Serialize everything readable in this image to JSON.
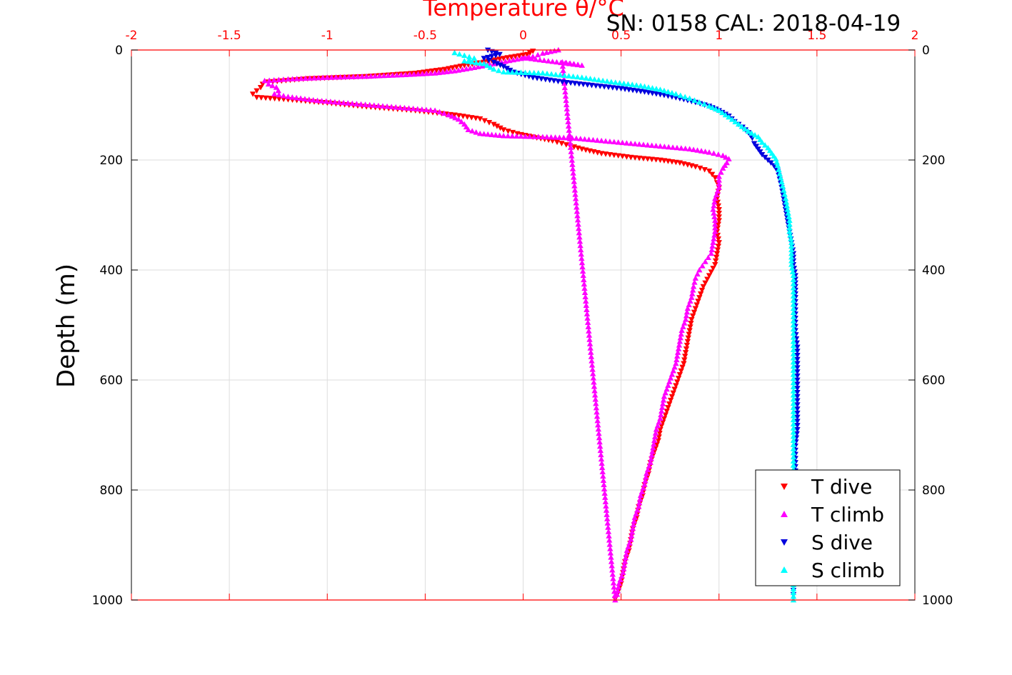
{
  "chart_data": {
    "type": "scatter",
    "title": "SN: 0158  CAL: 2018-04-19",
    "xlabel": "Temperature θ/°C",
    "ylabel": "Depth (m)",
    "xlim": [
      -2,
      2
    ],
    "ylim": [
      1000,
      0
    ],
    "y_reversed": true,
    "grid": true,
    "legend_position": "bottom-right",
    "x_ticks": [
      "-2",
      "-1.5",
      "-1",
      "-0.5",
      "0",
      "0.5",
      "1",
      "1.5",
      "2"
    ],
    "y_ticks": [
      "0",
      "200",
      "400",
      "600",
      "800",
      "1000"
    ],
    "x_tick_values": [
      -2,
      -1.5,
      -1,
      -0.5,
      0,
      0.5,
      1,
      1.5,
      2
    ],
    "y_tick_values": [
      0,
      200,
      400,
      600,
      800,
      1000
    ],
    "colors": {
      "axis_top": "#ff0000",
      "axis_box": "#000000",
      "grid": "#dddddd",
      "t_dive": "#ff0000",
      "t_climb": "#ff00ff",
      "s_dive": "#0000dd",
      "s_climb": "#00ffff"
    },
    "series": [
      {
        "name": "T dive",
        "marker": "triangle-down",
        "color": "#ff0000",
        "points": [
          [
            0.05,
            2
          ],
          [
            0.02,
            8
          ],
          [
            -0.1,
            15
          ],
          [
            -0.2,
            22
          ],
          [
            -0.3,
            28
          ],
          [
            -0.4,
            35
          ],
          [
            -0.55,
            42
          ],
          [
            -0.8,
            48
          ],
          [
            -1.1,
            52
          ],
          [
            -1.3,
            58
          ],
          [
            -1.33,
            62
          ],
          [
            -1.34,
            68
          ],
          [
            -1.36,
            74
          ],
          [
            -1.38,
            80
          ],
          [
            -1.36,
            86
          ],
          [
            -1.2,
            90
          ],
          [
            -1.0,
            96
          ],
          [
            -0.8,
            103
          ],
          [
            -0.55,
            110
          ],
          [
            -0.35,
            118
          ],
          [
            -0.22,
            125
          ],
          [
            -0.15,
            135
          ],
          [
            -0.1,
            145
          ],
          [
            -0.03,
            152
          ],
          [
            0.05,
            158
          ],
          [
            0.15,
            165
          ],
          [
            0.22,
            172
          ],
          [
            0.3,
            180
          ],
          [
            0.4,
            188
          ],
          [
            0.55,
            195
          ],
          [
            0.7,
            200
          ],
          [
            0.8,
            205
          ],
          [
            0.88,
            212
          ],
          [
            0.95,
            220
          ],
          [
            0.98,
            232
          ],
          [
            1.0,
            250
          ],
          [
            0.99,
            270
          ],
          [
            1.0,
            290
          ],
          [
            1.0,
            310
          ],
          [
            0.99,
            330
          ],
          [
            1.0,
            350
          ],
          [
            0.99,
            370
          ],
          [
            0.98,
            390
          ],
          [
            0.95,
            410
          ],
          [
            0.92,
            430
          ],
          [
            0.9,
            450
          ],
          [
            0.88,
            470
          ],
          [
            0.86,
            490
          ],
          [
            0.85,
            510
          ],
          [
            0.84,
            530
          ],
          [
            0.83,
            550
          ],
          [
            0.82,
            570
          ],
          [
            0.8,
            590
          ],
          [
            0.78,
            610
          ],
          [
            0.76,
            630
          ],
          [
            0.74,
            650
          ],
          [
            0.72,
            670
          ],
          [
            0.7,
            690
          ],
          [
            0.69,
            710
          ],
          [
            0.67,
            730
          ],
          [
            0.65,
            750
          ],
          [
            0.64,
            770
          ],
          [
            0.62,
            790
          ],
          [
            0.61,
            810
          ],
          [
            0.59,
            830
          ],
          [
            0.58,
            850
          ],
          [
            0.56,
            870
          ],
          [
            0.55,
            890
          ],
          [
            0.54,
            910
          ],
          [
            0.52,
            930
          ],
          [
            0.51,
            950
          ],
          [
            0.5,
            970
          ],
          [
            0.48,
            990
          ],
          [
            0.47,
            998
          ]
        ]
      },
      {
        "name": "T climb",
        "marker": "triangle-up",
        "color": "#ff00ff",
        "points": [
          [
            0.18,
            0
          ],
          [
            0.1,
            6
          ],
          [
            0.05,
            12
          ],
          [
            -0.05,
            18
          ],
          [
            -0.15,
            25
          ],
          [
            -0.25,
            32
          ],
          [
            -0.35,
            38
          ],
          [
            -0.45,
            42
          ],
          [
            -0.6,
            45
          ],
          [
            -0.8,
            48
          ],
          [
            -1.0,
            50
          ],
          [
            -1.2,
            53
          ],
          [
            -1.32,
            56
          ],
          [
            -1.3,
            62
          ],
          [
            -1.26,
            68
          ],
          [
            -1.25,
            74
          ],
          [
            -1.27,
            80
          ],
          [
            -1.2,
            85
          ],
          [
            -1.05,
            92
          ],
          [
            -0.85,
            98
          ],
          [
            -0.65,
            104
          ],
          [
            -0.45,
            110
          ],
          [
            -0.38,
            118
          ],
          [
            -0.33,
            126
          ],
          [
            -0.3,
            135
          ],
          [
            -0.28,
            145
          ],
          [
            -0.22,
            152
          ],
          [
            -0.1,
            156
          ],
          [
            0.1,
            158
          ],
          [
            0.25,
            160
          ],
          [
            0.4,
            165
          ],
          [
            0.55,
            170
          ],
          [
            0.7,
            175
          ],
          [
            0.85,
            180
          ],
          [
            0.95,
            186
          ],
          [
            1.02,
            192
          ],
          [
            1.05,
            198
          ],
          [
            1.04,
            205
          ],
          [
            1.02,
            215
          ],
          [
            1.0,
            230
          ],
          [
            1.0,
            250
          ],
          [
            0.98,
            270
          ],
          [
            0.97,
            290
          ],
          [
            0.98,
            310
          ],
          [
            0.98,
            330
          ],
          [
            0.97,
            350
          ],
          [
            0.96,
            370
          ],
          [
            0.93,
            385
          ],
          [
            0.9,
            400
          ],
          [
            0.88,
            415
          ],
          [
            0.87,
            430
          ],
          [
            0.86,
            450
          ],
          [
            0.84,
            470
          ],
          [
            0.83,
            490
          ],
          [
            0.81,
            510
          ],
          [
            0.8,
            530
          ],
          [
            0.79,
            550
          ],
          [
            0.78,
            570
          ],
          [
            0.76,
            590
          ],
          [
            0.74,
            610
          ],
          [
            0.72,
            630
          ],
          [
            0.71,
            650
          ],
          [
            0.7,
            670
          ],
          [
            0.68,
            690
          ],
          [
            0.67,
            710
          ],
          [
            0.66,
            730
          ],
          [
            0.65,
            750
          ],
          [
            0.63,
            770
          ],
          [
            0.62,
            790
          ],
          [
            0.6,
            810
          ],
          [
            0.59,
            830
          ],
          [
            0.57,
            850
          ],
          [
            0.56,
            870
          ],
          [
            0.55,
            890
          ],
          [
            0.53,
            910
          ],
          [
            0.52,
            930
          ],
          [
            0.51,
            950
          ],
          [
            0.49,
            970
          ],
          [
            0.48,
            990
          ],
          [
            0.47,
            1000
          ],
          [
            0.2,
            22
          ],
          [
            0.3,
            28
          ],
          [
            0.0,
            14
          ]
        ]
      },
      {
        "name": "S dive",
        "marker": "triangle-down",
        "color": "#0000dd",
        "points": [
          [
            -0.18,
            0
          ],
          [
            -0.12,
            8
          ],
          [
            -0.2,
            15
          ],
          [
            -0.15,
            22
          ],
          [
            -0.1,
            30
          ],
          [
            -0.05,
            40
          ],
          [
            0.05,
            50
          ],
          [
            0.2,
            58
          ],
          [
            0.35,
            64
          ],
          [
            0.5,
            70
          ],
          [
            0.62,
            76
          ],
          [
            0.72,
            82
          ],
          [
            0.8,
            88
          ],
          [
            0.88,
            95
          ],
          [
            0.95,
            102
          ],
          [
            1.0,
            110
          ],
          [
            1.05,
            120
          ],
          [
            1.08,
            130
          ],
          [
            1.12,
            140
          ],
          [
            1.15,
            150
          ],
          [
            1.17,
            160
          ],
          [
            1.18,
            170
          ],
          [
            1.2,
            180
          ],
          [
            1.22,
            190
          ],
          [
            1.25,
            200
          ],
          [
            1.28,
            210
          ],
          [
            1.3,
            220
          ],
          [
            1.31,
            235
          ],
          [
            1.32,
            250
          ],
          [
            1.33,
            270
          ],
          [
            1.34,
            290
          ],
          [
            1.35,
            310
          ],
          [
            1.36,
            330
          ],
          [
            1.37,
            350
          ],
          [
            1.38,
            370
          ],
          [
            1.38,
            390
          ],
          [
            1.39,
            410
          ],
          [
            1.39,
            430
          ],
          [
            1.39,
            450
          ],
          [
            1.39,
            480
          ],
          [
            1.39,
            510
          ],
          [
            1.4,
            540
          ],
          [
            1.4,
            570
          ],
          [
            1.4,
            600
          ],
          [
            1.4,
            630
          ],
          [
            1.4,
            660
          ],
          [
            1.4,
            690
          ],
          [
            1.39,
            720
          ],
          [
            1.39,
            750
          ],
          [
            1.39,
            780
          ],
          [
            1.39,
            810
          ],
          [
            1.39,
            840
          ],
          [
            1.38,
            870
          ],
          [
            1.38,
            900
          ],
          [
            1.38,
            930
          ],
          [
            1.38,
            960
          ],
          [
            1.38,
            990
          ]
        ]
      },
      {
        "name": "S climb",
        "marker": "triangle-up",
        "color": "#00ffff",
        "points": [
          [
            -0.35,
            5
          ],
          [
            -0.3,
            10
          ],
          [
            -0.25,
            15
          ],
          [
            -0.3,
            20
          ],
          [
            -0.2,
            25
          ],
          [
            -0.15,
            35
          ],
          [
            -0.1,
            40
          ],
          [
            0.1,
            42
          ],
          [
            0.3,
            50
          ],
          [
            0.45,
            58
          ],
          [
            0.6,
            65
          ],
          [
            0.7,
            72
          ],
          [
            0.78,
            80
          ],
          [
            0.85,
            88
          ],
          [
            0.9,
            95
          ],
          [
            0.95,
            102
          ],
          [
            1.0,
            110
          ],
          [
            1.05,
            122
          ],
          [
            1.1,
            135
          ],
          [
            1.15,
            148
          ],
          [
            1.2,
            158
          ],
          [
            1.22,
            168
          ],
          [
            1.25,
            178
          ],
          [
            1.27,
            188
          ],
          [
            1.29,
            198
          ],
          [
            1.3,
            210
          ],
          [
            1.31,
            225
          ],
          [
            1.32,
            240
          ],
          [
            1.33,
            255
          ],
          [
            1.34,
            270
          ],
          [
            1.35,
            290
          ],
          [
            1.36,
            310
          ],
          [
            1.36,
            330
          ],
          [
            1.37,
            350
          ],
          [
            1.37,
            370
          ],
          [
            1.37,
            390
          ],
          [
            1.38,
            410
          ],
          [
            1.38,
            440
          ],
          [
            1.38,
            470
          ],
          [
            1.38,
            500
          ],
          [
            1.38,
            530
          ],
          [
            1.38,
            560
          ],
          [
            1.38,
            590
          ],
          [
            1.38,
            620
          ],
          [
            1.38,
            650
          ],
          [
            1.38,
            680
          ],
          [
            1.38,
            710
          ],
          [
            1.38,
            740
          ],
          [
            1.38,
            770
          ],
          [
            1.38,
            800
          ],
          [
            1.38,
            830
          ],
          [
            1.38,
            860
          ],
          [
            1.38,
            890
          ],
          [
            1.38,
            920
          ],
          [
            1.38,
            950
          ],
          [
            1.38,
            980
          ],
          [
            1.38,
            1000
          ]
        ]
      }
    ]
  }
}
